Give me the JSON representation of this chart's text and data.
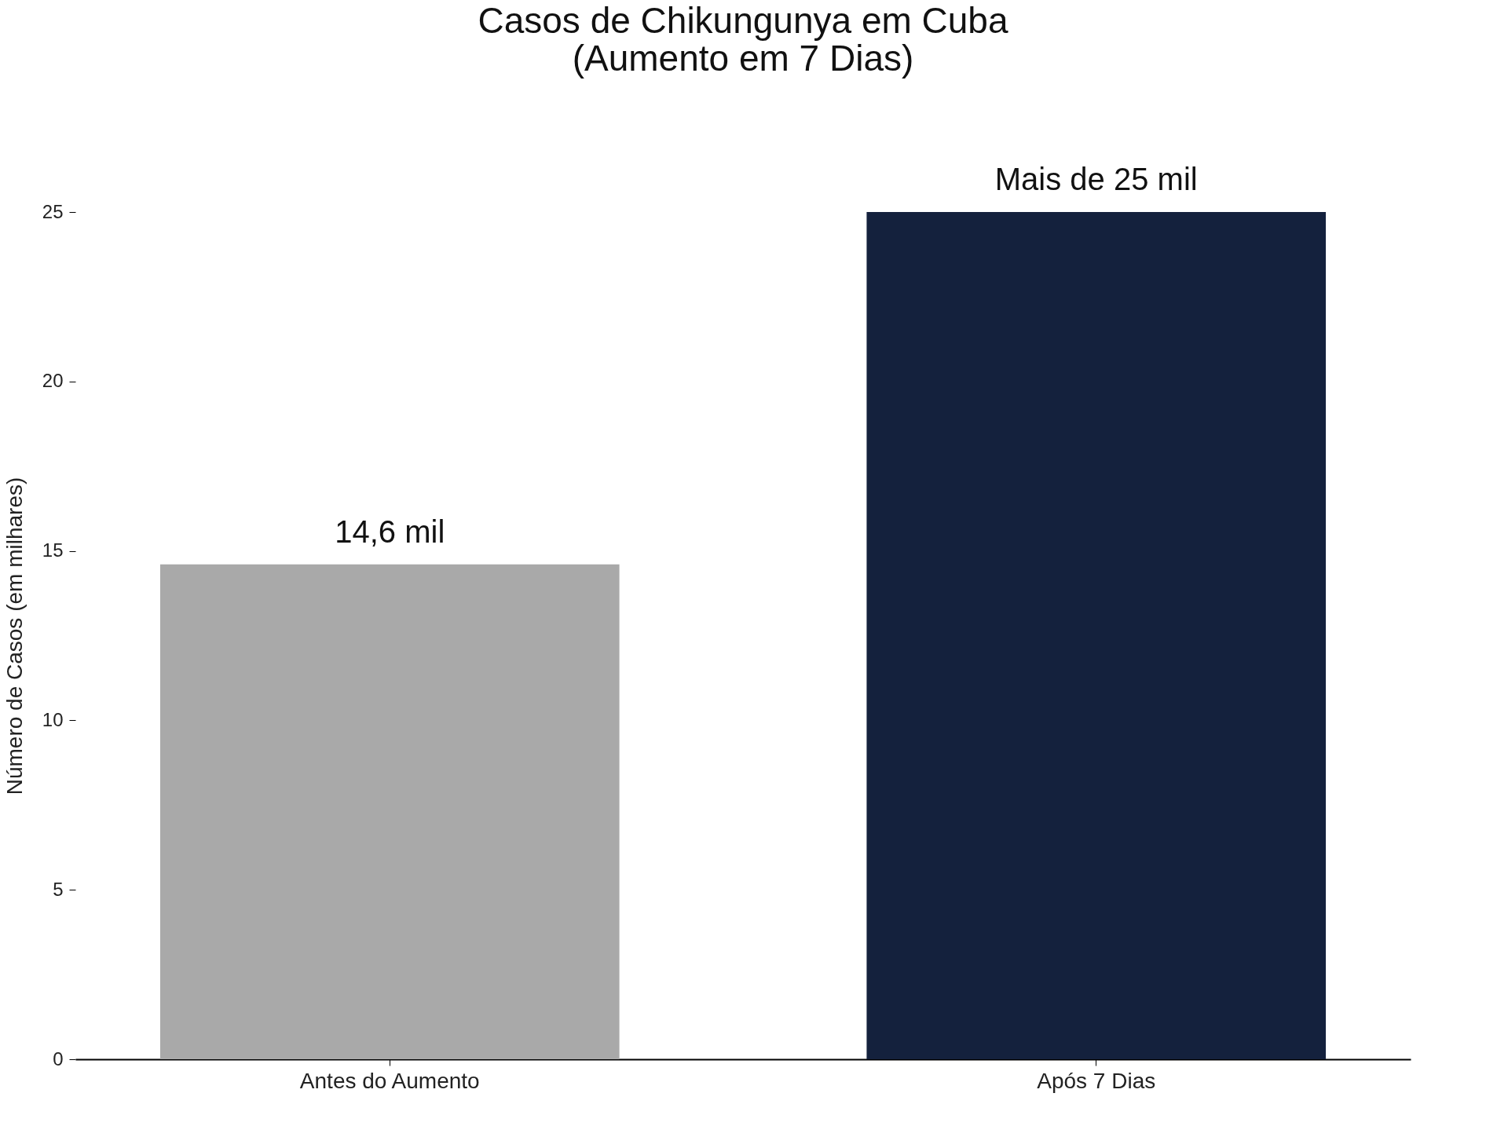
{
  "chart_data": {
    "type": "bar",
    "title": [
      "Casos de Chikungunya em Cuba",
      "(Aumento em 7 Dias)"
    ],
    "ylabel": "Número de Casos (em milhares)",
    "categories": [
      "Antes do Aumento",
      "Após 7 Dias"
    ],
    "values": [
      14.6,
      25
    ],
    "colors": [
      "#a9a9a9",
      "#14213d"
    ],
    "value_labels": [
      "14,6 mil",
      "Mais de 25 mil"
    ],
    "ylim": [
      0,
      25
    ],
    "yticks": [
      0,
      5,
      10,
      15,
      20,
      25
    ],
    "grid": false
  }
}
